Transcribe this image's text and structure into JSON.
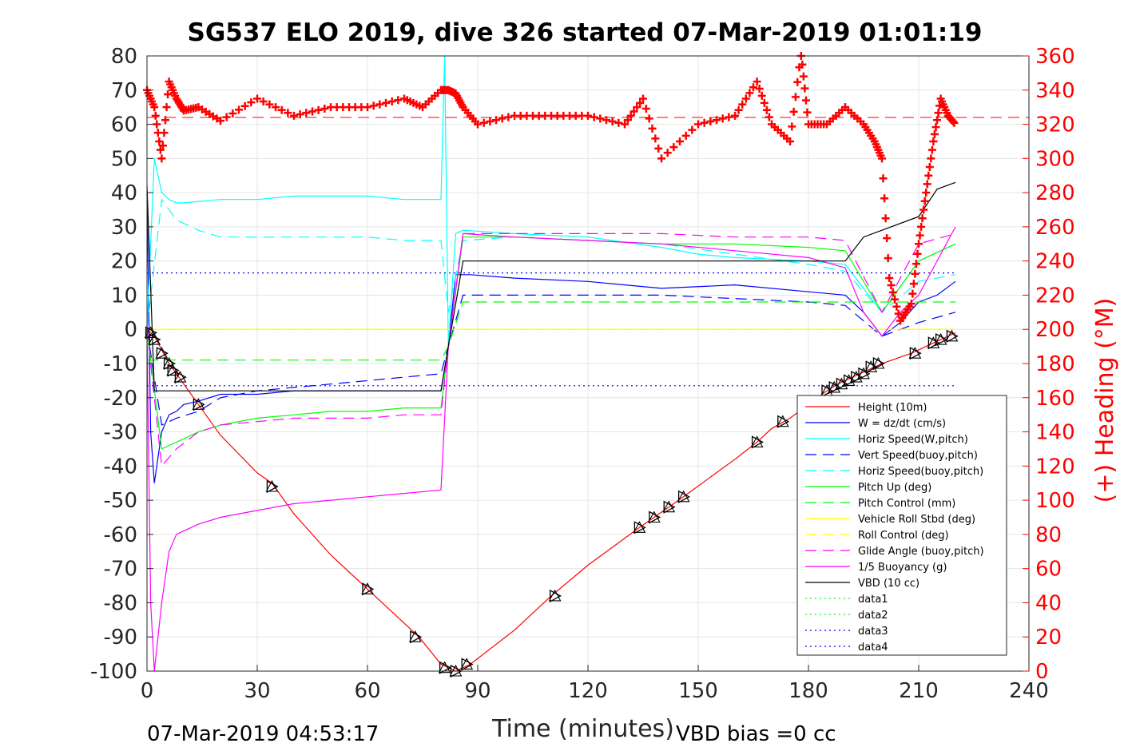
{
  "chart_data": {
    "type": "line",
    "title": "SG537 ELO 2019, dive 326 started 07-Mar-2019 01:01:19",
    "xlabel": "Time (minutes)",
    "ylabel": "",
    "y2label": "(+) Heading (°M)",
    "xlim": [
      0,
      240
    ],
    "ylim": [
      -100,
      80
    ],
    "y2lim": [
      0,
      360
    ],
    "xticks": [
      "0",
      "30",
      "60",
      "90",
      "120",
      "150",
      "180",
      "210",
      "240"
    ],
    "yticks": [
      "80",
      "70",
      "60",
      "50",
      "40",
      "30",
      "20",
      "10",
      "0",
      "-10",
      "-20",
      "-30",
      "-40",
      "-50",
      "-60",
      "-70",
      "-80",
      "-90",
      "-100"
    ],
    "y2ticks": [
      "360",
      "340",
      "320",
      "300",
      "280",
      "260",
      "240",
      "220",
      "200",
      "180",
      "160",
      "140",
      "120",
      "100",
      "80",
      "60",
      "40",
      "20",
      "0"
    ],
    "grid": true,
    "legend_position": "bottom-right",
    "footer_left": "07-Mar-2019 04:53:17",
    "footer_right": "VBD bias =0 cc",
    "series": [
      {
        "name": "Height (10m)",
        "color": "#ff0000",
        "style": "solid",
        "x": [
          0,
          2,
          4,
          6,
          8,
          10,
          14,
          20,
          30,
          34,
          40,
          50,
          60,
          70,
          74,
          80,
          84,
          86,
          88,
          100,
          110,
          120,
          134,
          138,
          142,
          146,
          160,
          166,
          170,
          175,
          180,
          185,
          188,
          192,
          196,
          200,
          208,
          212,
          216,
          220
        ],
        "y": [
          0,
          -2,
          -6,
          -10,
          -13,
          -16,
          -22,
          -31,
          -42,
          -45,
          -54,
          -66,
          -76,
          -86,
          -90,
          -98,
          -100,
          -99,
          -98,
          -88,
          -78,
          -69,
          -58,
          -55,
          -52,
          -49,
          -38,
          -33,
          -29,
          -26,
          -22,
          -18,
          -16,
          -14,
          -12,
          -10,
          -7,
          -5,
          -3,
          -1
        ]
      },
      {
        "name": "W = dz/dt (cm/s)",
        "color": "#0000ff",
        "style": "solid",
        "x": [
          0,
          1,
          2,
          4,
          6,
          8,
          10,
          14,
          20,
          30,
          40,
          50,
          60,
          70,
          80,
          82,
          84,
          86,
          88,
          100,
          120,
          140,
          160,
          180,
          190,
          195,
          200,
          205,
          210,
          215,
          220
        ],
        "y": [
          40,
          -30,
          -45,
          -30,
          -25,
          -24,
          -22,
          -21,
          -19,
          -19,
          -18,
          -18,
          -18,
          -18,
          -18,
          -5,
          16,
          16,
          16,
          15,
          14,
          12,
          13,
          11,
          10,
          5,
          -2,
          2,
          8,
          10,
          14
        ]
      },
      {
        "name": "Horiz Speed(W,pitch)",
        "color": "#00ffff",
        "style": "solid",
        "x": [
          0,
          2,
          4,
          6,
          8,
          10,
          20,
          30,
          40,
          50,
          60,
          70,
          80,
          81,
          82,
          84,
          86,
          100,
          120,
          140,
          150,
          160,
          180,
          190,
          200,
          210,
          220
        ],
        "y": [
          0,
          50,
          40,
          38,
          37,
          37,
          38,
          38,
          39,
          39,
          39,
          38,
          38,
          80,
          -5,
          28,
          29,
          28,
          27,
          24,
          22,
          21,
          20,
          19,
          5,
          20,
          25
        ]
      },
      {
        "name": "Vert Speed(buoy,pitch)",
        "color": "#0000ff",
        "style": "dashed",
        "x": [
          0,
          4,
          8,
          14,
          20,
          30,
          40,
          50,
          60,
          70,
          80,
          82,
          86,
          100,
          120,
          140,
          160,
          180,
          190,
          200,
          210,
          220
        ],
        "y": [
          0,
          -28,
          -26,
          -24,
          -20,
          -18,
          -17,
          -16,
          -15,
          -14,
          -13,
          -5,
          10,
          10,
          10,
          10,
          9,
          8,
          7,
          -2,
          2,
          5
        ]
      },
      {
        "name": "Horiz Speed(buoy,pitch)",
        "color": "#00ffff",
        "style": "dashed",
        "x": [
          0,
          4,
          8,
          14,
          20,
          30,
          40,
          50,
          60,
          70,
          80,
          82,
          86,
          100,
          120,
          140,
          160,
          180,
          190,
          200,
          210,
          220
        ],
        "y": [
          0,
          38,
          32,
          29,
          27,
          27,
          27,
          27,
          27,
          26,
          26,
          5,
          26,
          27,
          26,
          25,
          22,
          19,
          17,
          5,
          14,
          16
        ]
      },
      {
        "name": "Pitch Up (deg)",
        "color": "#00ff00",
        "style": "solid",
        "x": [
          0,
          4,
          8,
          14,
          20,
          30,
          40,
          50,
          60,
          70,
          80,
          82,
          86,
          100,
          120,
          140,
          160,
          180,
          190,
          200,
          210,
          220
        ],
        "y": [
          0,
          -35,
          -33,
          -30,
          -28,
          -26,
          -25,
          -24,
          -24,
          -23,
          -23,
          -5,
          27,
          27,
          26,
          25,
          25,
          24,
          23,
          5,
          20,
          25
        ]
      },
      {
        "name": "Pitch Control (mm)",
        "color": "#00ff00",
        "style": "dashed",
        "x": [
          0,
          10,
          20,
          80,
          82,
          86,
          180,
          200,
          210,
          220
        ],
        "y": [
          -9,
          -9,
          -9,
          -9,
          -5,
          8,
          8,
          8,
          8,
          8
        ]
      },
      {
        "name": "Vehicle Roll Stbd (deg)",
        "color": "#ffff00",
        "style": "solid",
        "x": [
          0,
          10,
          20,
          40,
          60,
          80,
          90,
          120,
          150,
          180,
          190,
          200,
          210,
          220
        ],
        "y": [
          0,
          0,
          0,
          0,
          0,
          0,
          0,
          0,
          0,
          0,
          0,
          0,
          0,
          0
        ]
      },
      {
        "name": "Roll Control (deg)",
        "color": "#ffff00",
        "style": "dashed",
        "x": [
          0,
          20,
          60,
          80,
          90,
          120,
          150,
          180,
          200,
          220
        ],
        "y": [
          0,
          0,
          0,
          0,
          0,
          0,
          0,
          0,
          0,
          0
        ]
      },
      {
        "name": "Glide Angle (buoy,pitch)",
        "color": "#ff00ff",
        "style": "dashed",
        "x": [
          0,
          4,
          8,
          14,
          20,
          30,
          40,
          50,
          60,
          70,
          80,
          82,
          86,
          100,
          120,
          140,
          160,
          180,
          190,
          200,
          210,
          220
        ],
        "y": [
          0,
          -40,
          -35,
          -30,
          -28,
          -27,
          -26,
          -26,
          -26,
          -25,
          -25,
          -5,
          28,
          28,
          28,
          28,
          27,
          27,
          26,
          5,
          25,
          28
        ]
      },
      {
        "name": "1/5 Buoyancy (g)",
        "color": "#ff00ff",
        "style": "solid",
        "x": [
          0,
          1,
          2,
          4,
          6,
          8,
          10,
          14,
          20,
          30,
          40,
          50,
          60,
          70,
          80,
          82,
          86,
          100,
          120,
          140,
          160,
          180,
          190,
          195,
          200,
          205,
          210,
          220
        ],
        "y": [
          0,
          -80,
          -100,
          -80,
          -65,
          -60,
          -59,
          -57,
          -55,
          -53,
          -51,
          -50,
          -49,
          -48,
          -47,
          -5,
          28,
          27,
          26,
          25,
          23,
          21,
          18,
          5,
          -2,
          5,
          10,
          30
        ]
      },
      {
        "name": "VBD (10 cc)",
        "color": "#000000",
        "style": "solid",
        "x": [
          0,
          2,
          20,
          40,
          60,
          80,
          82,
          86,
          120,
          150,
          190,
          195,
          210,
          215,
          220
        ],
        "y": [
          42,
          -18,
          -18,
          -18,
          -18,
          -18,
          -5,
          20,
          20,
          20,
          20,
          27,
          33,
          41,
          43
        ]
      },
      {
        "name": "data1",
        "color": "#00ff00",
        "style": "dotted",
        "x": [],
        "y": []
      },
      {
        "name": "data2",
        "color": "#00ff00",
        "style": "dotted",
        "x": [],
        "y": []
      },
      {
        "name": "data3",
        "color": "#0000ff",
        "style": "dotted",
        "x": [
          0,
          220
        ],
        "y": [
          16.5,
          16.5
        ]
      },
      {
        "name": "data4",
        "color": "#0000ff",
        "style": "dotted",
        "x": [
          0,
          220
        ],
        "y": [
          -16.5,
          -16.5
        ]
      }
    ],
    "heading": {
      "name": "Heading",
      "color": "#ff0000",
      "marker": "+",
      "x": [
        0,
        2,
        4,
        6,
        8,
        10,
        14,
        20,
        30,
        40,
        50,
        60,
        70,
        75,
        80,
        82,
        84,
        86,
        90,
        100,
        110,
        120,
        130,
        135,
        140,
        150,
        160,
        166,
        170,
        175,
        178,
        180,
        185,
        190,
        195,
        198,
        200,
        202,
        205,
        208,
        210,
        212,
        214,
        216,
        218,
        220
      ],
      "y": [
        340,
        330,
        300,
        345,
        335,
        328,
        330,
        322,
        335,
        325,
        330,
        330,
        335,
        330,
        340,
        340,
        338,
        330,
        320,
        325,
        325,
        325,
        320,
        335,
        300,
        320,
        325,
        345,
        320,
        310,
        362,
        320,
        320,
        330,
        320,
        310,
        300,
        230,
        205,
        215,
        250,
        280,
        310,
        335,
        325,
        320
      ]
    },
    "heading_mean": 324,
    "markers": {
      "x": [
        1,
        2,
        4,
        6,
        7,
        9,
        14,
        34,
        60,
        73,
        81,
        84,
        87,
        111,
        134,
        138,
        142,
        146,
        166,
        173,
        185,
        187,
        189,
        191,
        193,
        195,
        197,
        199,
        209,
        214,
        216,
        219
      ],
      "y": [
        -1,
        -3,
        -7,
        -10,
        -12,
        -14,
        -22,
        -46,
        -76,
        -90,
        -99,
        -100,
        -98,
        -78,
        -58,
        -55,
        -52,
        -49,
        -33,
        -27,
        -18,
        -17,
        -16,
        -15,
        -14,
        -13,
        -11,
        -10,
        -7,
        -4,
        -3,
        -2
      ]
    }
  }
}
